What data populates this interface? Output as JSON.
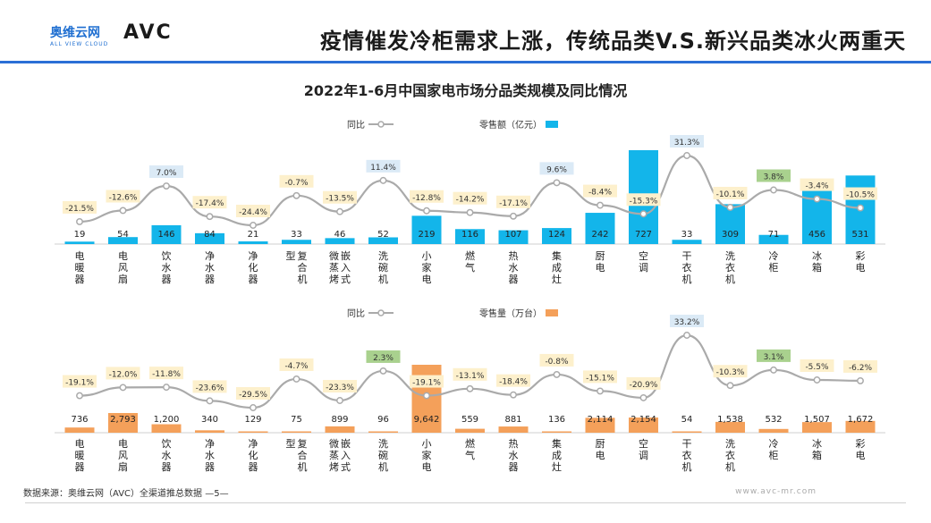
{
  "header": {
    "title": "疫情催发冷柜需求上涨，传统品类V.S.新兴品类冰火两重天",
    "logo_cn": "奥维云网",
    "logo_sub": "ALL VIEW CLOUD",
    "logo_mark": "AVC"
  },
  "subtitle": "2022年1-6月中国家电市场分品类规模及同比情况",
  "footer": {
    "source": "数据来源：奥维云网（AVC）全渠道推总数据 —5—",
    "website": "www.avc-mr.com"
  },
  "colors": {
    "accent": "#2a6fd6",
    "top_bar": "#13b5ea",
    "bottom_bar": "#f4a05a",
    "line": "#aaaaaa",
    "pct_box": "#fdf0cc",
    "pct_box_high": "#dbeaf6",
    "pct_box_green": "#a9d18e"
  },
  "chart_data": [
    {
      "type": "bar",
      "legend": {
        "bar": "零售额（亿元）",
        "line": "同比"
      },
      "categories": [
        "彩电",
        "冰箱",
        "冷柜",
        "洗衣机",
        "干衣机",
        "空调",
        "厨电",
        "集成灶",
        "热水器",
        "燃气",
        "小家电",
        "洗碗机",
        "嵌入式微蒸烤",
        "复合机型",
        "净化器",
        "净水器",
        "饮水器",
        "电风扇",
        "电暖器"
      ],
      "series": [
        {
          "name": "零售额（亿元）",
          "values": [
            531,
            456,
            71,
            309,
            33,
            727,
            242,
            124,
            107,
            116,
            219,
            52,
            46,
            33,
            21,
            84,
            146,
            54,
            19
          ]
        },
        {
          "name": "同比",
          "values": [
            -10.5,
            -3.4,
            3.8,
            -10.1,
            31.3,
            -15.3,
            -8.4,
            9.6,
            -17.1,
            -14.2,
            -12.8,
            11.4,
            -13.5,
            -0.7,
            -24.4,
            -17.4,
            7.0,
            -12.6,
            -21.5
          ]
        }
      ]
    },
    {
      "type": "bar",
      "legend": {
        "bar": "零售量（万台）",
        "line": "同比"
      },
      "categories": [
        "彩电",
        "冰箱",
        "冷柜",
        "洗衣机",
        "干衣机",
        "空调",
        "厨电",
        "集成灶",
        "热水器",
        "燃气",
        "小家电",
        "洗碗机",
        "嵌入式微蒸烤",
        "复合机型",
        "净化器",
        "净水器",
        "饮水器",
        "电风扇",
        "电暖器"
      ],
      "series": [
        {
          "name": "零售量（万台）",
          "values": [
            1672,
            1507,
            532,
            1538,
            54,
            2154,
            2114,
            136,
            881,
            559,
            9642,
            96,
            899,
            75,
            129,
            340,
            1200,
            2793,
            736
          ]
        },
        {
          "name": "同比",
          "values": [
            -6.2,
            -5.5,
            3.1,
            -10.3,
            33.2,
            -20.9,
            -15.1,
            -0.8,
            -18.4,
            -13.1,
            -19.1,
            2.3,
            -23.3,
            -4.7,
            -29.5,
            -23.6,
            -11.8,
            -12.0,
            -19.1
          ]
        }
      ]
    }
  ],
  "labels_top": {
    "values": [
      "531",
      "456",
      "71",
      "309",
      "33",
      "727",
      "242",
      "124",
      "107",
      "116",
      "219",
      "52",
      "46",
      "33",
      "21",
      "84",
      "146",
      "54",
      "19"
    ],
    "pcts": [
      "-10.5%",
      "-3.4%",
      "3.8%",
      "-10.1%",
      "31.3%",
      "-15.3%",
      "-8.4%",
      "9.6%",
      "-17.1%",
      "-14.2%",
      "-12.8%",
      "11.4%",
      "-13.5%",
      "-0.7%",
      "-24.4%",
      "-17.4%",
      "7.0%",
      "-12.6%",
      "-21.5%"
    ]
  },
  "labels_bottom": {
    "values": [
      "1,672",
      "1,507",
      "532",
      "1,538",
      "54",
      "2,154",
      "2,114",
      "136",
      "881",
      "559",
      "9,642",
      "96",
      "899",
      "75",
      "129",
      "340",
      "1,200",
      "2,793",
      "736"
    ],
    "pcts": [
      "-6.2%",
      "-5.5%",
      "3.1%",
      "-10.3%",
      "33.2%",
      "-20.9%",
      "-15.1%",
      "-0.8%",
      "-18.4%",
      "-13.1%",
      "-19.1%",
      "2.3%",
      "-23.3%",
      "-4.7%",
      "-29.5%",
      "-23.6%",
      "-11.8%",
      "-12.0%",
      "-19.1%"
    ]
  }
}
